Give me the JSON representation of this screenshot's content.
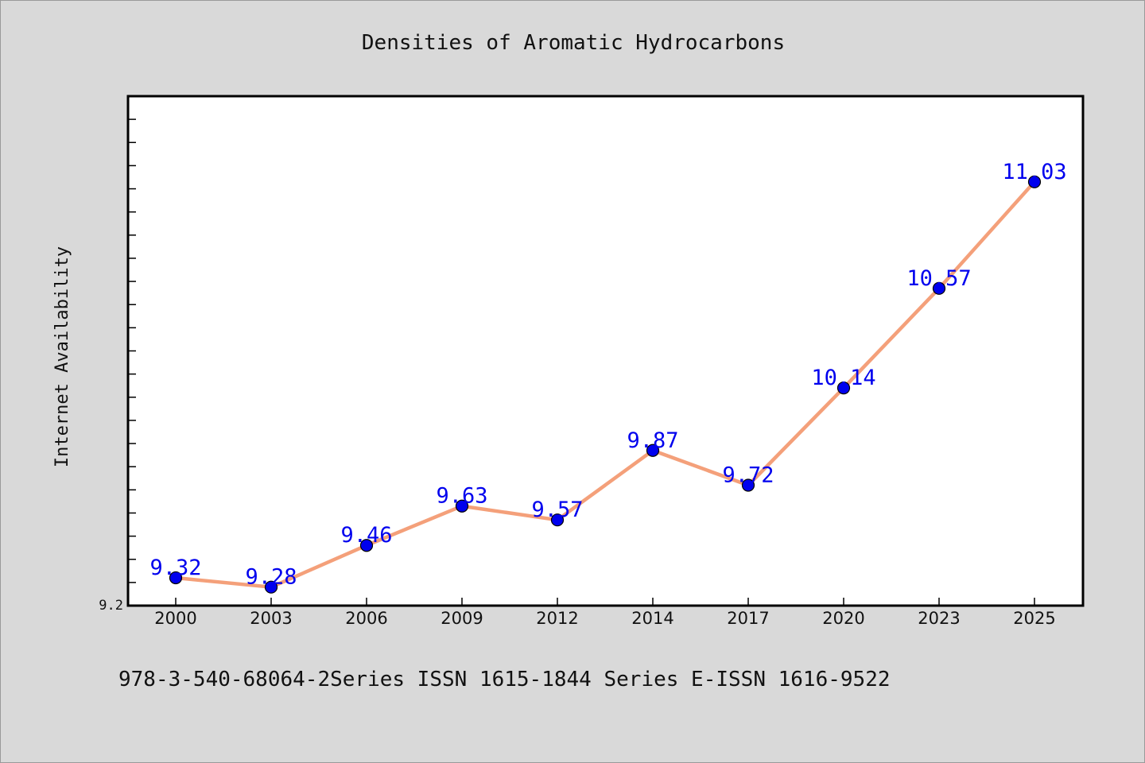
{
  "footer_text": "978-3-540-68064-2Series ISSN 1615-1844 Series E-ISSN 1616-9522",
  "chart_data": {
    "type": "line",
    "title": "Densities of Aromatic Hydrocarbons",
    "xlabel": "",
    "ylabel": "Internet Availability",
    "categories": [
      "2000",
      "2003",
      "2006",
      "2009",
      "2012",
      "2014",
      "2017",
      "2020",
      "2023",
      "2025"
    ],
    "series": [
      {
        "values": [
          9.32,
          9.28,
          9.46,
          9.63,
          9.57,
          9.87,
          9.72,
          10.14,
          10.57,
          11.03
        ],
        "line_color": "#f4a07a",
        "marker_color": "#0000ee",
        "label_color": "#0000ee"
      }
    ],
    "y_tick_labels": [
      "9.2"
    ],
    "ylim": [
      9.2,
      11.4
    ],
    "y_minor_step": 0.1,
    "grid": false,
    "legend": "none",
    "data_labels": true
  }
}
